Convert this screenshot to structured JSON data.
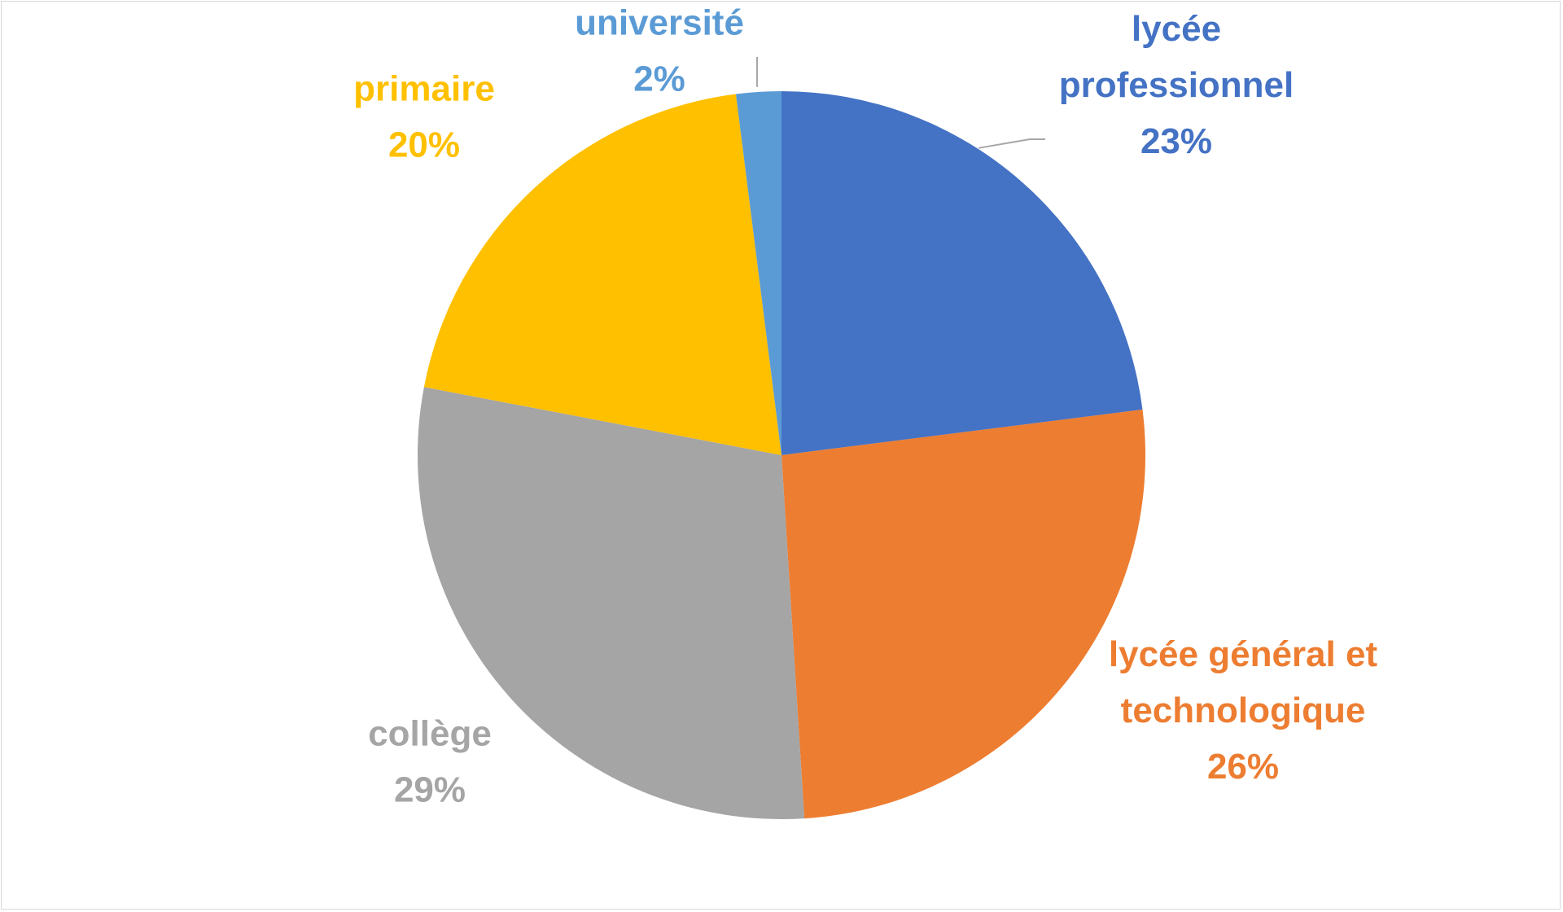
{
  "chart_data": {
    "type": "pie",
    "title": "",
    "start_angle_deg": 0,
    "direction": "clockwise",
    "slices": [
      {
        "label_lines": [
          "lycée",
          "professionnel"
        ],
        "value": 23,
        "value_label": "23%",
        "color": "#4472C4"
      },
      {
        "label_lines": [
          "lycée général et",
          "technologique"
        ],
        "value": 26,
        "value_label": "26%",
        "color": "#ED7D31"
      },
      {
        "label_lines": [
          "collège"
        ],
        "value": 29,
        "value_label": "29%",
        "color": "#A5A5A5"
      },
      {
        "label_lines": [
          "primaire"
        ],
        "value": 20,
        "value_label": "20%",
        "color": "#FFC000"
      },
      {
        "label_lines": [
          "université"
        ],
        "value": 2,
        "value_label": "2%",
        "color": "#5B9BD5"
      }
    ],
    "label_color_matches_slice": true,
    "leader_line_color": "#A6A6A6",
    "legend": "none"
  }
}
